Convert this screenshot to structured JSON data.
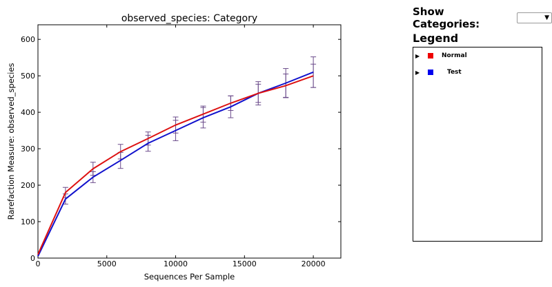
{
  "chart_data": {
    "type": "line",
    "title": "observed_species: Category",
    "xlabel": "Sequences Per Sample",
    "ylabel": "Rarefaction Measure: observed_species",
    "xlim": [
      0,
      22000
    ],
    "ylim": [
      0,
      640
    ],
    "xticks": [
      0,
      5000,
      10000,
      15000,
      20000
    ],
    "yticks": [
      0,
      100,
      200,
      300,
      400,
      500,
      600
    ],
    "x": [
      0,
      2000,
      4000,
      6000,
      8000,
      10000,
      12000,
      14000,
      16000,
      18000,
      20000
    ],
    "series": [
      {
        "name": "Normal",
        "color": "#dd1111",
        "values": [
          10,
          180,
          245,
          292,
          328,
          365,
          395,
          425,
          452,
          473,
          500
        ],
        "errors": [
          0,
          14,
          18,
          20,
          18,
          22,
          22,
          20,
          25,
          32,
          32
        ]
      },
      {
        "name": "Test",
        "color": "#1111cc",
        "values": [
          5,
          162,
          222,
          268,
          315,
          350,
          385,
          415,
          452,
          480,
          510
        ],
        "errors": [
          0,
          14,
          15,
          22,
          22,
          28,
          28,
          30,
          32,
          40,
          42
        ]
      }
    ],
    "grid": false
  },
  "controls": {
    "show_categories_label": "Show Categories:",
    "select_value": "",
    "select_arrow": "▼"
  },
  "legend": {
    "title": "Legend",
    "items": [
      {
        "label": "Normal",
        "color": "#ee0000",
        "toggle": "▶"
      },
      {
        "label": "Test",
        "color": "#0000ee",
        "toggle": "▶"
      }
    ]
  }
}
